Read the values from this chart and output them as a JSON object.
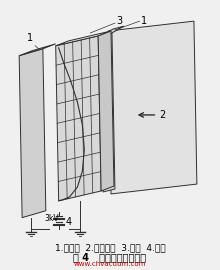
{
  "caption_line1": "1.阴极板  2.磁场方向  3.阳极  4.电源",
  "caption_line2": "图 4   溅射离子泵示意图",
  "watermark": "www.chvacuum.com",
  "bg_color": "#f0f0f0",
  "line_color": "#303030",
  "label_fontsize": 7,
  "caption_fontsize": 6.5,
  "caption2_fontsize": 7.0,
  "voltage_label": "3kV"
}
